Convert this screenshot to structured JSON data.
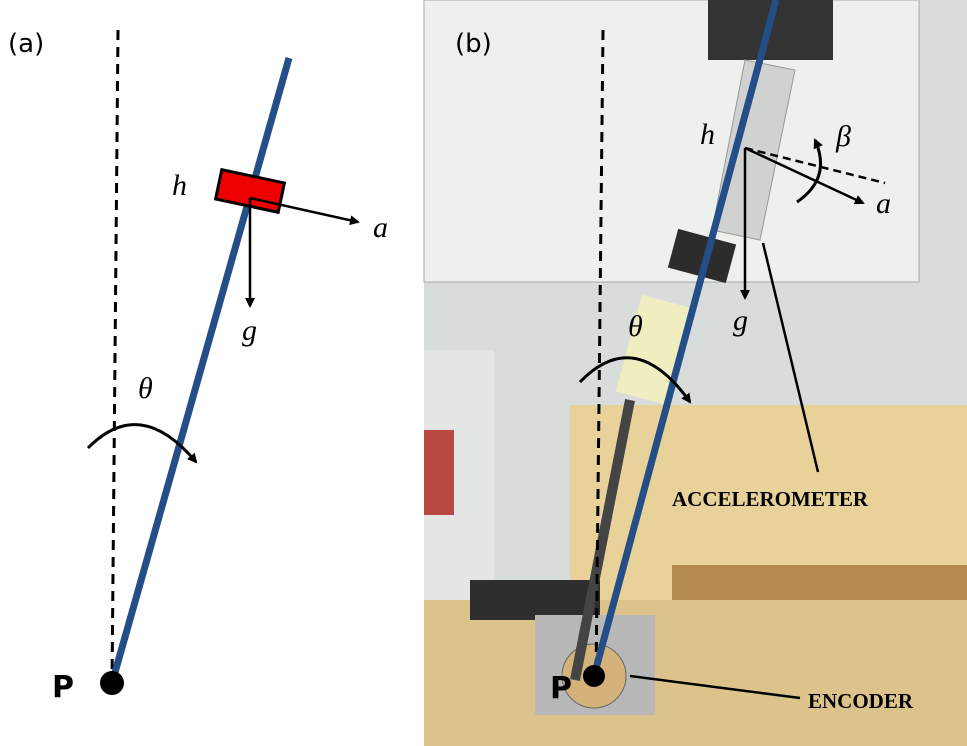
{
  "panel_a": {
    "label": "(a)",
    "h": "h",
    "a": "a",
    "g": "g",
    "theta": "θ",
    "pivot": "P"
  },
  "panel_b": {
    "label": "(b)",
    "h": "h",
    "beta": "β",
    "a": "a",
    "g": "g",
    "theta": "θ",
    "pivot": "P",
    "accelerometer": "ACCELEROMETER",
    "encoder": "ENCODER"
  }
}
